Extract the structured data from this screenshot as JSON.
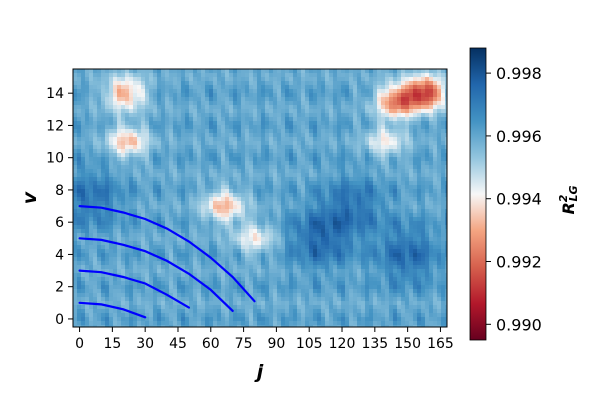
{
  "chart_data": {
    "type": "heatmap",
    "x_label": "j",
    "y_label": "v",
    "x_ticks": [
      "0",
      "15",
      "30",
      "45",
      "60",
      "75",
      "90",
      "105",
      "120",
      "135",
      "150",
      "165"
    ],
    "y_ticks": [
      "0",
      "2",
      "4",
      "6",
      "8",
      "10",
      "12",
      "14"
    ],
    "x_range": [
      -3,
      168
    ],
    "y_range": [
      -0.5,
      15.5
    ],
    "colorbar": {
      "label": "R²_LG",
      "label_main": "R",
      "label_sup": "2",
      "label_sub": "LG",
      "ticks": [
        "0.990",
        "0.992",
        "0.994",
        "0.996",
        "0.998"
      ],
      "range": [
        0.9895,
        0.9988
      ],
      "colormap": "RdBu",
      "colors": {
        "low": "#67001f",
        "mid": "#f7f7f7",
        "high": "#053061"
      }
    },
    "field": {
      "base_value": 0.9963,
      "periodic_dip_j": 12,
      "periodic_dip_v": 2,
      "notable_regions": [
        {
          "j": 158,
          "v": 14,
          "value": 0.9915
        },
        {
          "j": 145,
          "v": 13.5,
          "value": 0.9925
        },
        {
          "j": 21,
          "v": 14,
          "value": 0.9933
        },
        {
          "j": 22,
          "v": 11,
          "value": 0.9937
        },
        {
          "j": 66,
          "v": 7,
          "value": 0.9936
        },
        {
          "j": 80,
          "v": 5,
          "value": 0.9945
        },
        {
          "j": 140,
          "v": 11,
          "value": 0.9945
        }
      ],
      "dark_regions": [
        {
          "j": 5,
          "v": 7.5,
          "value": 0.9975
        },
        {
          "j": 110,
          "v": 5,
          "value": 0.9978
        },
        {
          "j": 150,
          "v": 4,
          "value": 0.9977
        },
        {
          "j": 125,
          "v": 7,
          "value": 0.9975
        }
      ]
    },
    "series": [
      {
        "color": "#0000ff",
        "points": [
          [
            0,
            1
          ],
          [
            10,
            0.9
          ],
          [
            20,
            0.6
          ],
          [
            30,
            0.1
          ]
        ]
      },
      {
        "color": "#0000ff",
        "points": [
          [
            0,
            3
          ],
          [
            10,
            2.9
          ],
          [
            20,
            2.6
          ],
          [
            30,
            2.2
          ],
          [
            40,
            1.5
          ],
          [
            50,
            0.7
          ]
        ]
      },
      {
        "color": "#0000ff",
        "points": [
          [
            0,
            5
          ],
          [
            10,
            4.9
          ],
          [
            20,
            4.6
          ],
          [
            30,
            4.2
          ],
          [
            40,
            3.6
          ],
          [
            50,
            2.8
          ],
          [
            60,
            1.8
          ],
          [
            70,
            0.5
          ]
        ]
      },
      {
        "color": "#0000ff",
        "points": [
          [
            0,
            7
          ],
          [
            10,
            6.9
          ],
          [
            20,
            6.6
          ],
          [
            30,
            6.2
          ],
          [
            40,
            5.6
          ],
          [
            50,
            4.8
          ],
          [
            60,
            3.8
          ],
          [
            70,
            2.6
          ],
          [
            80,
            1.1
          ]
        ]
      }
    ]
  }
}
